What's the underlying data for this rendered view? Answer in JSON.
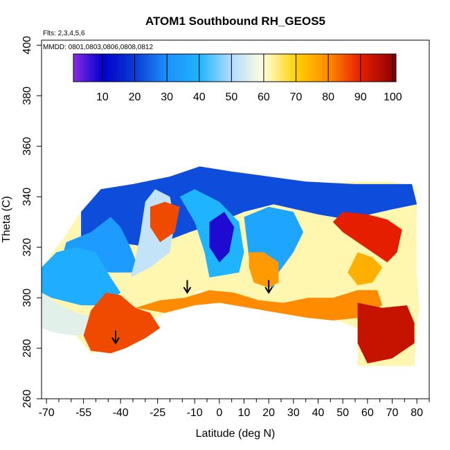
{
  "chart_data": {
    "type": "heatmap",
    "title": "ATOM1 Southbound RH_GEOS5",
    "subtitle_flights": "Flts: 2,3,4,5,6",
    "subtitle_dates": "MMDD: 0801,0803,0806,0808,0812",
    "xlabel": "Latitude (deg N)",
    "ylabel": "Theta (C)",
    "xlim": [
      -72,
      85
    ],
    "ylim": [
      260,
      402
    ],
    "x_ticks": [
      -70,
      -55,
      -40,
      -25,
      -10,
      0,
      10,
      20,
      30,
      40,
      50,
      60,
      70,
      80
    ],
    "x_tick_labels": [
      "-70",
      "-55",
      "-40",
      "-25",
      "-10",
      "0",
      "10",
      "20",
      "30",
      "40",
      "50",
      "60",
      "70",
      "80"
    ],
    "x_minor_ticks": [
      -65,
      -60,
      -50,
      -45,
      -35,
      -30,
      -20,
      -15,
      -5,
      5,
      15,
      25,
      35,
      45,
      55,
      65,
      75,
      85
    ],
    "y_ticks": [
      260,
      280,
      300,
      320,
      340,
      360,
      380,
      400
    ],
    "y_tick_labels": [
      "260",
      "280",
      "300",
      "320",
      "340",
      "360",
      "380",
      "400"
    ],
    "colorbar": {
      "range": [
        1,
        101
      ],
      "ticks": [
        10,
        20,
        30,
        40,
        50,
        60,
        70,
        80,
        90,
        100
      ],
      "tick_labels": [
        "10",
        "20",
        "30",
        "40",
        "50",
        "60",
        "70",
        "80",
        "90",
        "100"
      ],
      "stops": [
        [
          1,
          "#8a2be2"
        ],
        [
          10,
          "#0000cd"
        ],
        [
          20,
          "#0a3cd2"
        ],
        [
          30,
          "#1e90ff"
        ],
        [
          40,
          "#1eb4ff"
        ],
        [
          50,
          "#b4dcff"
        ],
        [
          60,
          "#ffffdc"
        ],
        [
          70,
          "#ffd200"
        ],
        [
          80,
          "#ff8c00"
        ],
        [
          90,
          "#e61e00"
        ],
        [
          101,
          "#8b0000"
        ]
      ]
    },
    "regions": [
      {
        "rh": 22,
        "poly": [
          [
            -56,
            334
          ],
          [
            -48,
            343
          ],
          [
            -35,
            345
          ],
          [
            -20,
            348
          ],
          [
            -8,
            352
          ],
          [
            5,
            350
          ],
          [
            20,
            348
          ],
          [
            35,
            346
          ],
          [
            55,
            345
          ],
          [
            78,
            345
          ],
          [
            80,
            337
          ],
          [
            70,
            335
          ],
          [
            52,
            331
          ],
          [
            40,
            333
          ],
          [
            22,
            337
          ],
          [
            10,
            334
          ],
          [
            0,
            330
          ],
          [
            -12,
            326
          ],
          [
            -28,
            320
          ],
          [
            -42,
            322
          ],
          [
            -56,
            322
          ]
        ]
      },
      {
        "rh": 33,
        "poly": [
          [
            -62,
            322
          ],
          [
            -52,
            326
          ],
          [
            -44,
            332
          ],
          [
            -40,
            328
          ],
          [
            -36,
            320
          ],
          [
            -32,
            310
          ],
          [
            -44,
            310
          ],
          [
            -58,
            312
          ],
          [
            -64,
            315
          ]
        ]
      },
      {
        "rh": 40,
        "poly": [
          [
            -16,
            340
          ],
          [
            -10,
            330
          ],
          [
            -6,
            318
          ],
          [
            -4,
            308
          ],
          [
            8,
            310
          ],
          [
            10,
            318
          ],
          [
            8,
            330
          ],
          [
            0,
            338
          ],
          [
            -10,
            343
          ]
        ]
      },
      {
        "rh": 52,
        "poly": [
          [
            -36,
            308
          ],
          [
            -28,
            312
          ],
          [
            -20,
            318
          ],
          [
            -18,
            330
          ],
          [
            -20,
            340
          ],
          [
            -26,
            343
          ],
          [
            -30,
            338
          ],
          [
            -32,
            325
          ],
          [
            -34,
            315
          ]
        ]
      },
      {
        "rh": 36,
        "poly": [
          [
            10,
            332
          ],
          [
            20,
            336
          ],
          [
            30,
            334
          ],
          [
            34,
            326
          ],
          [
            30,
            318
          ],
          [
            24,
            310
          ],
          [
            22,
            304
          ],
          [
            15,
            306
          ],
          [
            12,
            316
          ]
        ]
      },
      {
        "rh": 38,
        "poly": [
          [
            -72,
            312
          ],
          [
            -66,
            318
          ],
          [
            -58,
            320
          ],
          [
            -50,
            318
          ],
          [
            -44,
            308
          ],
          [
            -40,
            302
          ],
          [
            -46,
            297
          ],
          [
            -56,
            297
          ],
          [
            -68,
            300
          ],
          [
            -72,
            302
          ]
        ]
      },
      {
        "rh": 56,
        "poly": [
          [
            -72,
            302
          ],
          [
            -66,
            298
          ],
          [
            -58,
            294
          ],
          [
            -50,
            292
          ],
          [
            -48,
            286
          ],
          [
            -58,
            285
          ],
          [
            -66,
            286
          ],
          [
            -72,
            288
          ]
        ]
      },
      {
        "rh": 8,
        "poly": [
          [
            -4,
            330
          ],
          [
            2,
            334
          ],
          [
            6,
            328
          ],
          [
            4,
            318
          ],
          [
            0,
            314
          ],
          [
            -4,
            320
          ]
        ]
      },
      {
        "rh": 86,
        "poly": [
          [
            -52,
            295
          ],
          [
            -46,
            302
          ],
          [
            -40,
            301
          ],
          [
            -34,
            296
          ],
          [
            -28,
            294
          ],
          [
            -24,
            288
          ],
          [
            -30,
            284
          ],
          [
            -38,
            280
          ],
          [
            -44,
            278
          ],
          [
            -52,
            279
          ],
          [
            -55,
            285
          ]
        ]
      },
      {
        "rh": 80,
        "poly": [
          [
            -34,
            296
          ],
          [
            -24,
            299
          ],
          [
            -14,
            300
          ],
          [
            -4,
            303
          ],
          [
            6,
            302
          ],
          [
            16,
            299
          ],
          [
            26,
            298
          ],
          [
            36,
            300
          ],
          [
            46,
            300
          ],
          [
            56,
            303
          ],
          [
            64,
            303
          ],
          [
            66,
            297
          ],
          [
            56,
            292
          ],
          [
            46,
            291
          ],
          [
            36,
            292
          ],
          [
            24,
            294
          ],
          [
            12,
            296
          ],
          [
            0,
            298
          ],
          [
            -10,
            297
          ],
          [
            -22,
            294
          ]
        ]
      },
      {
        "rh": 94,
        "poly": [
          [
            56,
            298
          ],
          [
            66,
            296
          ],
          [
            76,
            297
          ],
          [
            79,
            290
          ],
          [
            79,
            282
          ],
          [
            70,
            276
          ],
          [
            60,
            274
          ],
          [
            56,
            282
          ]
        ]
      },
      {
        "rh": 86,
        "poly": [
          [
            -28,
            336
          ],
          [
            -22,
            338
          ],
          [
            -16,
            336
          ],
          [
            -18,
            326
          ],
          [
            -24,
            322
          ],
          [
            -28,
            328
          ]
        ]
      },
      {
        "rh": 90,
        "poly": [
          [
            50,
            334
          ],
          [
            60,
            333
          ],
          [
            68,
            331
          ],
          [
            74,
            327
          ],
          [
            72,
            318
          ],
          [
            68,
            314
          ],
          [
            62,
            318
          ],
          [
            56,
            322
          ],
          [
            50,
            326
          ],
          [
            46,
            330
          ]
        ]
      },
      {
        "rh": 78,
        "poly": [
          [
            12,
            318
          ],
          [
            18,
            318
          ],
          [
            24,
            314
          ],
          [
            24,
            306
          ],
          [
            20,
            304
          ],
          [
            14,
            306
          ],
          [
            12,
            312
          ]
        ]
      },
      {
        "rh": 75,
        "poly": [
          [
            56,
            318
          ],
          [
            62,
            316
          ],
          [
            66,
            312
          ],
          [
            62,
            306
          ],
          [
            56,
            305
          ],
          [
            52,
            310
          ]
        ]
      }
    ],
    "arrows": [
      [
        -42,
        282
      ],
      [
        -13,
        302
      ],
      [
        20,
        302
      ]
    ]
  }
}
